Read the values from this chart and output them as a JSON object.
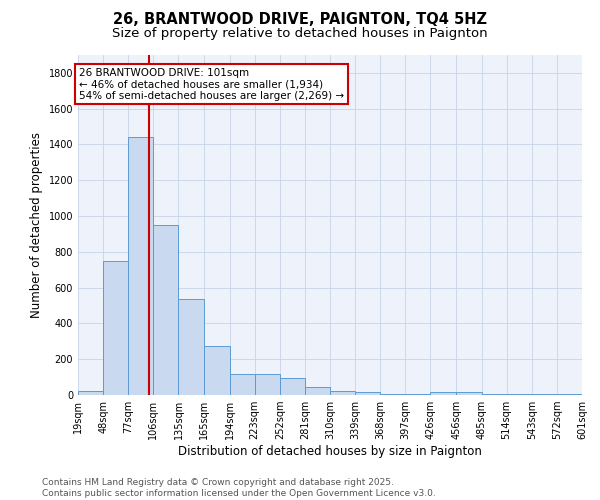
{
  "title": "26, BRANTWOOD DRIVE, PAIGNTON, TQ4 5HZ",
  "subtitle": "Size of property relative to detached houses in Paignton",
  "xlabel": "Distribution of detached houses by size in Paignton",
  "ylabel": "Number of detached properties",
  "bar_color": "#c9d9f0",
  "bar_edge_color": "#5b9bd5",
  "grid_color": "#c8d4e8",
  "background_color": "#eef2fb",
  "bins": [
    19,
    48,
    77,
    106,
    135,
    165,
    194,
    223,
    252,
    281,
    310,
    339,
    368,
    397,
    426,
    456,
    485,
    514,
    543,
    572,
    601
  ],
  "counts": [
    25,
    750,
    1440,
    950,
    535,
    275,
    115,
    115,
    95,
    45,
    25,
    15,
    5,
    5,
    15,
    15,
    5,
    5,
    5,
    5
  ],
  "property_size": 101,
  "property_line_color": "#cc0000",
  "annotation_text": "26 BRANTWOOD DRIVE: 101sqm\n← 46% of detached houses are smaller (1,934)\n54% of semi-detached houses are larger (2,269) →",
  "annotation_box_color": "#ffffff",
  "annotation_box_edge_color": "#cc0000",
  "tick_labels": [
    "19sqm",
    "48sqm",
    "77sqm",
    "106sqm",
    "135sqm",
    "165sqm",
    "194sqm",
    "223sqm",
    "252sqm",
    "281sqm",
    "310sqm",
    "339sqm",
    "368sqm",
    "397sqm",
    "426sqm",
    "456sqm",
    "485sqm",
    "514sqm",
    "543sqm",
    "572sqm",
    "601sqm"
  ],
  "ylim": [
    0,
    1900
  ],
  "yticks": [
    0,
    200,
    400,
    600,
    800,
    1000,
    1200,
    1400,
    1600,
    1800
  ],
  "footer_text": "Contains HM Land Registry data © Crown copyright and database right 2025.\nContains public sector information licensed under the Open Government Licence v3.0.",
  "title_fontsize": 10.5,
  "subtitle_fontsize": 9.5,
  "axis_label_fontsize": 8.5,
  "tick_fontsize": 7,
  "footer_fontsize": 6.5,
  "annotation_fontsize": 7.5
}
